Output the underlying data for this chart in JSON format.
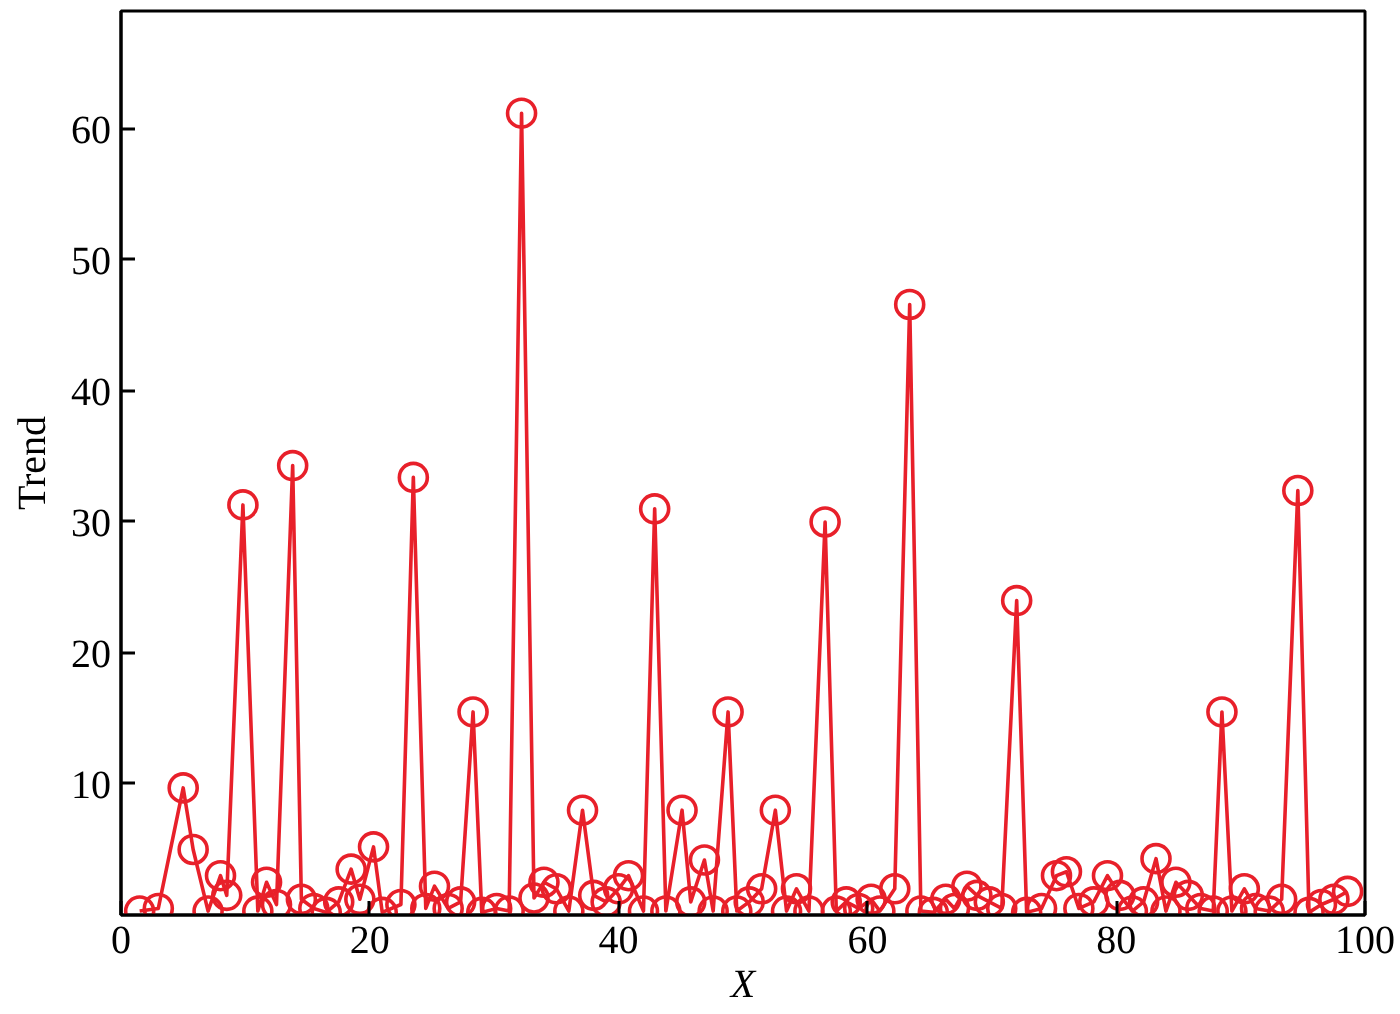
{
  "chart_data": {
    "type": "line",
    "xlabel": "X",
    "ylabel": "Trend",
    "xlim": [
      0,
      100
    ],
    "xticks": [
      0,
      20,
      40,
      60,
      80,
      100
    ],
    "ylim": [
      0,
      69
    ],
    "yticks": [
      10,
      20,
      30,
      40,
      50,
      60
    ],
    "grid": false,
    "marker": "circle",
    "line_style": "solid",
    "series": [
      {
        "color": "#e8202a",
        "x": [
          1.5,
          3,
          5,
          5.8,
          7,
          8,
          8.5,
          9.8,
          11,
          11.7,
          12.5,
          13.8,
          14.5,
          15.5,
          16.5,
          17.5,
          18.5,
          19.2,
          20.3,
          21,
          22.5,
          23.5,
          24.5,
          25.2,
          26.3,
          27.3,
          28.3,
          29,
          30.2,
          31.2,
          32.2,
          33.2,
          34,
          35,
          36,
          37.1,
          38,
          39,
          40,
          40.8,
          42,
          42.9,
          43.8,
          45.1,
          45.8,
          46.9,
          47.6,
          48.8,
          49.5,
          50.5,
          51.5,
          52.6,
          53.5,
          54.3,
          55.3,
          56.6,
          57.5,
          58.3,
          59.3,
          60.3,
          61,
          62.2,
          63.4,
          64.3,
          65.3,
          66.3,
          67,
          68,
          68.8,
          69.8,
          70.8,
          72,
          72.8,
          74,
          75.2,
          76,
          77,
          78.2,
          79.3,
          80.3,
          81.3,
          82.2,
          83.2,
          84,
          84.8,
          85.8,
          86.8,
          87.8,
          88.5,
          89.3,
          90.3,
          91.2,
          92.3,
          93.3,
          94.6,
          95.5,
          96.5,
          97.5,
          98.6
        ],
        "values": [
          0.3,
          0.5,
          9.7,
          5,
          0.3,
          3,
          1.5,
          31.3,
          0.3,
          2.5,
          0.8,
          34.3,
          1.2,
          0.5,
          0.2,
          1,
          3.5,
          1.2,
          5.2,
          0.2,
          0.8,
          33.4,
          0.5,
          2.2,
          0.5,
          1,
          15.5,
          0.2,
          0.5,
          0.3,
          61.2,
          1.3,
          2.5,
          2,
          0.3,
          8,
          1.5,
          1,
          2,
          3,
          0.3,
          31,
          0.3,
          8,
          1,
          4.2,
          0.3,
          15.5,
          0.3,
          1,
          2,
          8,
          0.3,
          2,
          0.3,
          30,
          0.3,
          1,
          0.5,
          1.2,
          0.3,
          2,
          46.6,
          0.3,
          0.2,
          1.2,
          0.5,
          2.2,
          1.5,
          1,
          0.5,
          24,
          0.2,
          0.5,
          3,
          3.3,
          0.5,
          1,
          3,
          1.5,
          0.3,
          1,
          4.3,
          0.3,
          2.5,
          1.5,
          0.5,
          0.3,
          15.5,
          0.3,
          2,
          0.5,
          0.3,
          1.2,
          32.4,
          0.2,
          0.8,
          1.2,
          1.8
        ]
      }
    ]
  }
}
